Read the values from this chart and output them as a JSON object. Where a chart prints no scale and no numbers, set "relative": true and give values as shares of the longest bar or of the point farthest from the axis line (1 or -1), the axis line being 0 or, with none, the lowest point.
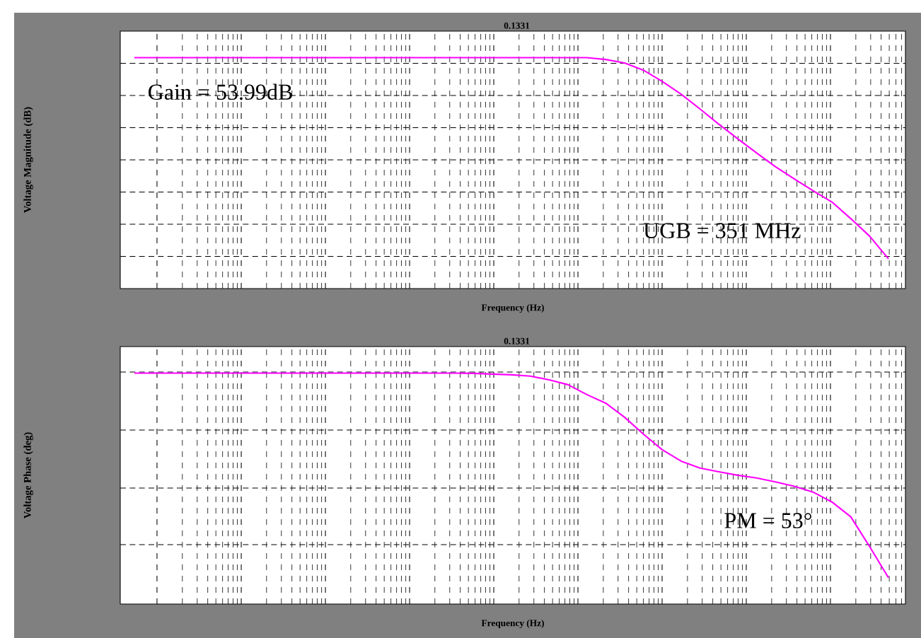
{
  "chart_data": [
    {
      "type": "line",
      "relative": true,
      "xlabel": "Frequency (Hz)",
      "ylabel": "Voltage Magnitude (dB)",
      "grid": true,
      "tick_labels": false,
      "annotations": [
        "0.1331",
        "Gain = 53.99dB",
        "UGB = 351 MHz"
      ],
      "categories": [
        null,
        null,
        null,
        null,
        null,
        null,
        null,
        null,
        null,
        null,
        null,
        null,
        null,
        null,
        null,
        null,
        null,
        null,
        null,
        null,
        null,
        null,
        null,
        null,
        null,
        null,
        null,
        null,
        null,
        null,
        null,
        null,
        null,
        null,
        null,
        null,
        null,
        null,
        null,
        null,
        null
      ],
      "series": [
        {
          "color": "#ff00ff",
          "values": [
            1,
            1,
            1,
            1,
            1,
            1,
            1,
            1,
            1,
            1,
            1,
            1,
            1,
            1,
            1,
            1,
            1,
            1,
            1,
            1,
            1,
            1,
            1,
            1,
            1,
            0.992,
            0.977,
            0.946,
            0.897,
            0.842,
            0.778,
            0.712,
            0.649,
            0.588,
            0.528,
            0.475,
            0.424,
            0.375,
            0.303,
            0.227,
            0.129
          ]
        }
      ]
    },
    {
      "type": "line",
      "relative": true,
      "xlabel": "Frequency (Hz)",
      "ylabel": "Voltage Phase (deg)",
      "grid": true,
      "tick_labels": false,
      "annotations": [
        "0.1331",
        "PM = 53°"
      ],
      "categories": [
        null,
        null,
        null,
        null,
        null,
        null,
        null,
        null,
        null,
        null,
        null,
        null,
        null,
        null,
        null,
        null,
        null,
        null,
        null,
        null,
        null,
        null,
        null,
        null,
        null,
        null,
        null,
        null,
        null,
        null,
        null,
        null,
        null,
        null,
        null,
        null,
        null,
        null,
        null,
        null,
        null
      ],
      "series": [
        {
          "color": "#ff00ff",
          "values": [
            1,
            1,
            1,
            1,
            1,
            1,
            1,
            1,
            1,
            1,
            1,
            1,
            1,
            1,
            1,
            1,
            1,
            1,
            0.999,
            0.996,
            0.993,
            0.987,
            0.971,
            0.95,
            0.907,
            0.87,
            0.809,
            0.736,
            0.668,
            0.619,
            0.589,
            0.573,
            0.558,
            0.546,
            0.529,
            0.51,
            0.485,
            0.442,
            0.378,
            0.249,
            0.114
          ]
        }
      ]
    }
  ]
}
